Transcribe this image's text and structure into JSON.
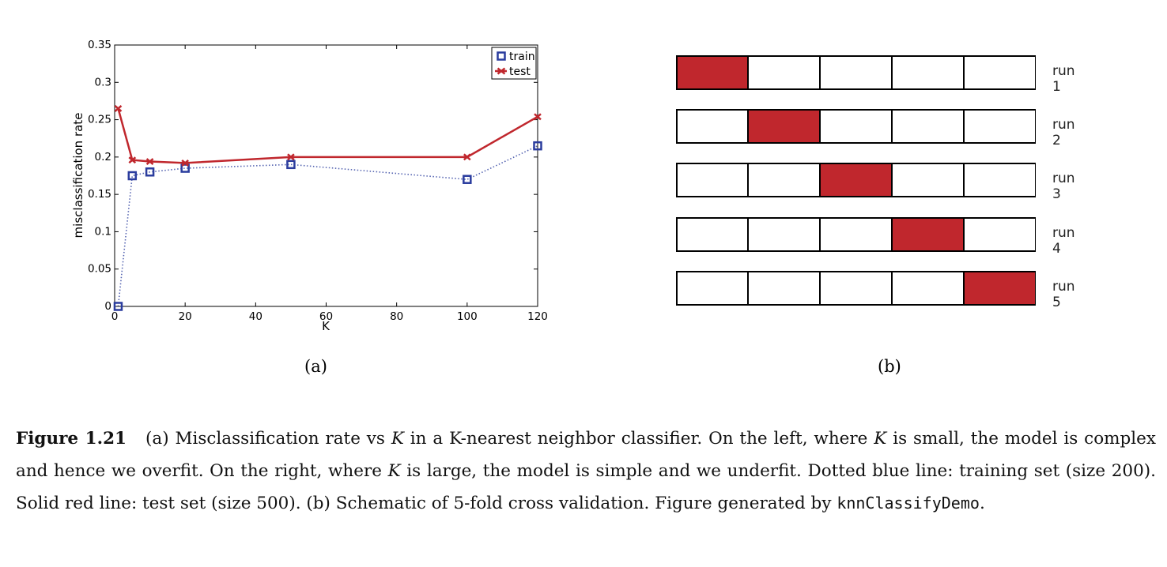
{
  "chart_data": {
    "type": "line",
    "xlabel": "K",
    "ylabel": "misclassification rate",
    "xlim": [
      0,
      120
    ],
    "ylim": [
      0,
      0.35
    ],
    "xticks": [
      "0",
      "20",
      "40",
      "60",
      "80",
      "100",
      "120"
    ],
    "yticks": [
      "0",
      "0.05",
      "0.1",
      "0.15",
      "0.2",
      "0.25",
      "0.3",
      "0.35"
    ],
    "legend_position": "top-right",
    "series": [
      {
        "name": "train",
        "style": "dotted",
        "marker": "square",
        "color": "#2b3d9e",
        "x": [
          1,
          5,
          10,
          20,
          50,
          100,
          120
        ],
        "values": [
          0.0,
          0.175,
          0.18,
          0.185,
          0.19,
          0.17,
          0.215
        ]
      },
      {
        "name": "test",
        "style": "solid",
        "marker": "x",
        "color": "#c0272d",
        "x": [
          1,
          5,
          10,
          20,
          50,
          100,
          120
        ],
        "values": [
          0.265,
          0.196,
          0.194,
          0.192,
          0.2,
          0.2,
          0.254
        ]
      }
    ]
  },
  "cv_schematic": {
    "folds": 5,
    "highlight_color": "#c0272d",
    "runs": [
      {
        "label": "run 1",
        "test_fold": 0
      },
      {
        "label": "run 2",
        "test_fold": 1
      },
      {
        "label": "run 3",
        "test_fold": 2
      },
      {
        "label": "run 4",
        "test_fold": 3
      },
      {
        "label": "run 5",
        "test_fold": 4
      }
    ]
  },
  "subcaptions": {
    "a": "(a)",
    "b": "(b)"
  },
  "caption": {
    "label": "Figure 1.21",
    "part1": "(a) Misclassification rate vs ",
    "var": "K",
    "part2": " in a K-nearest neighbor classifier. On the left, where ",
    "part3": " is small, the model is complex and hence we overfit. On the right, where ",
    "part4": " is large, the model is simple and we underfit. Dotted blue line: training set (size 200). Solid red line: test set (size 500). (b) Schematic of 5-fold cross validation. Figure generated by ",
    "code": "knnClassifyDemo",
    "end": "."
  }
}
